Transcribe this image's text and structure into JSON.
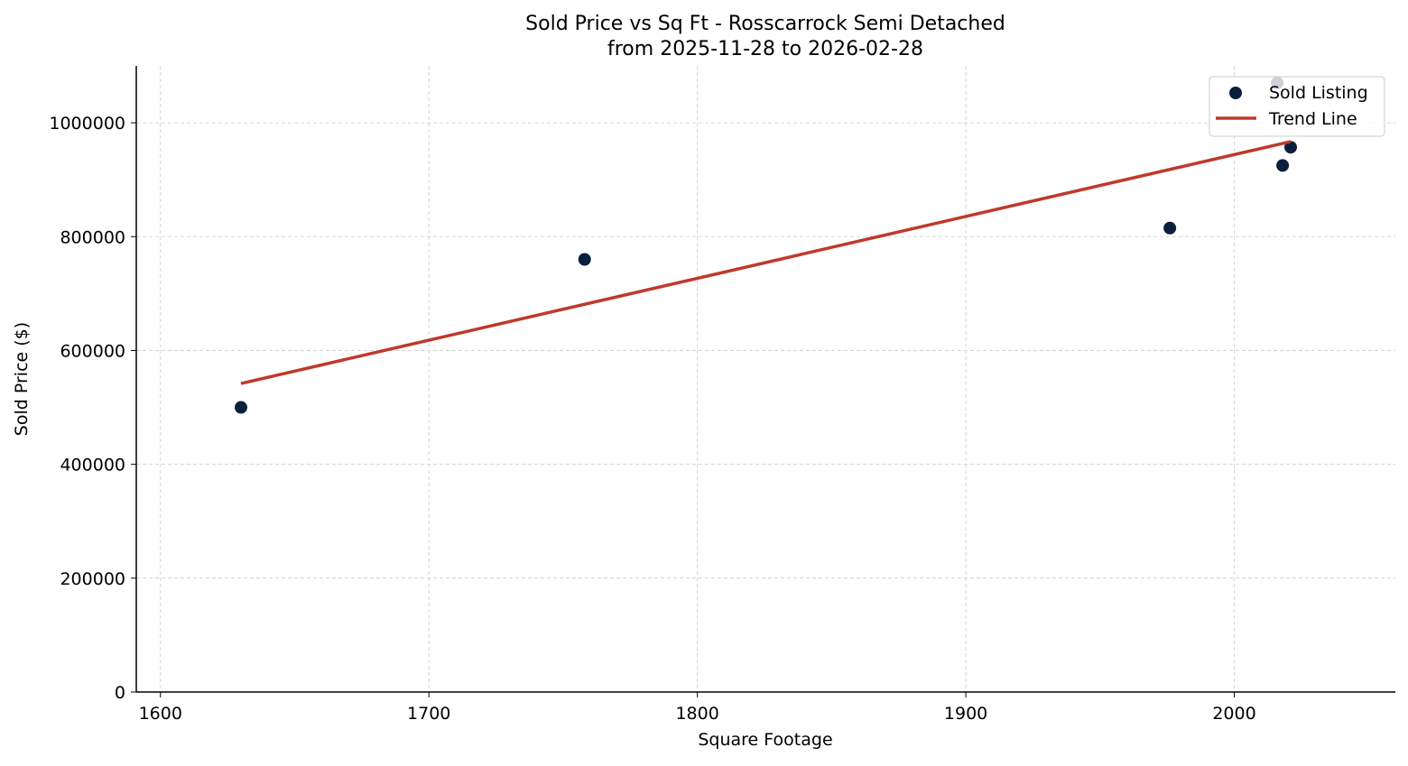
{
  "chart_data": {
    "type": "scatter",
    "title": "Sold Price vs Sq Ft - Rosscarrock Semi Detached",
    "subtitle": "from 2025-11-28 to 2026-02-28",
    "xlabel": "Square Footage",
    "ylabel": "Sold Price ($)",
    "xlim": [
      1591,
      2060
    ],
    "ylim": [
      0,
      1100000
    ],
    "xticks": [
      1600,
      1700,
      1800,
      1900,
      2000
    ],
    "yticks": [
      0,
      200000,
      400000,
      600000,
      800000,
      1000000
    ],
    "grid": true,
    "legend_position": "top-right",
    "series": [
      {
        "name": "Sold Listing",
        "kind": "scatter",
        "color": "#0a1f3c",
        "points": [
          {
            "x": 1630,
            "y": 500000
          },
          {
            "x": 1758,
            "y": 760000
          },
          {
            "x": 1976,
            "y": 815000
          },
          {
            "x": 2016,
            "y": 1070000
          },
          {
            "x": 2018,
            "y": 925000
          },
          {
            "x": 2021,
            "y": 957000
          }
        ]
      },
      {
        "name": "Trend Line",
        "kind": "line",
        "color": "#c0392b",
        "points": [
          {
            "x": 1630,
            "y": 542000
          },
          {
            "x": 2021,
            "y": 967000
          }
        ]
      }
    ]
  }
}
